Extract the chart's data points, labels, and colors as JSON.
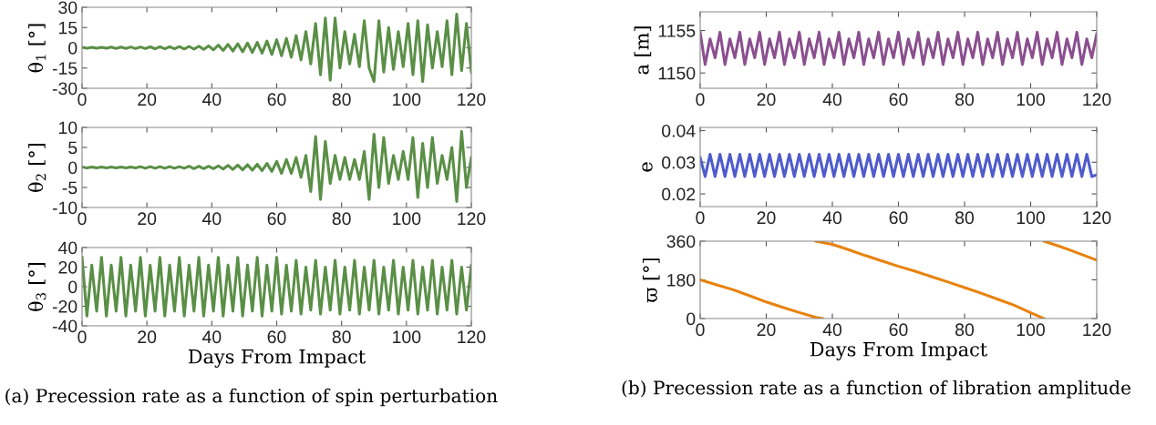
{
  "chart_data": [
    {
      "type": "line",
      "ylabel": "θ$_{1}$ [°]",
      "xlim": [
        0,
        120
      ],
      "xticks": [
        0,
        20,
        40,
        60,
        80,
        100,
        120
      ],
      "ylim": [
        -30,
        30
      ],
      "yticks": [
        -30,
        -15,
        0,
        15,
        30
      ],
      "series": [
        {
          "color": "#5a8f46",
          "x": [
            0,
            1.5,
            3,
            4.5,
            6,
            7.5,
            9,
            10.5,
            12,
            13.5,
            15,
            16.5,
            18,
            19.5,
            21,
            22.5,
            24,
            25.5,
            27,
            28.5,
            30,
            31.5,
            33,
            34.5,
            36,
            37.5,
            39,
            40.5,
            42,
            43.5,
            45,
            46.5,
            48,
            49.5,
            51,
            52.5,
            54,
            55.5,
            57,
            58.5,
            60,
            61.5,
            63,
            64.5,
            66,
            67.5,
            69,
            70.5,
            72,
            73.5,
            75,
            76.5,
            78,
            79.5,
            81,
            82.5,
            84,
            85.5,
            87,
            88.5,
            90,
            91.5,
            93,
            94.5,
            96,
            97.5,
            99,
            100.5,
            102,
            103.5,
            105,
            106.5,
            108,
            109.5,
            111,
            112.5,
            114,
            115.5,
            117,
            118.5,
            120
          ],
          "values": [
            0.3,
            -0.3,
            0.4,
            -0.4,
            0.4,
            -0.4,
            0.5,
            -0.5,
            0.5,
            -0.5,
            0.6,
            -0.6,
            0.6,
            -0.6,
            0.7,
            -0.7,
            0.8,
            -0.8,
            0.8,
            -0.8,
            0.9,
            -0.9,
            1,
            -1,
            1.2,
            -1.2,
            1.4,
            -1.5,
            2,
            -2,
            2.5,
            -2.5,
            3,
            -3,
            3.5,
            -3.5,
            4,
            -4,
            5,
            -5,
            6,
            -6,
            7,
            -7,
            9,
            -9,
            12,
            -12,
            18,
            -20,
            22,
            -24,
            22,
            -15,
            12,
            -12,
            10,
            -14,
            20,
            -15,
            -25,
            20,
            -18,
            15,
            -16,
            12,
            -14,
            18,
            -20,
            20,
            -25,
            17,
            -15,
            12,
            -14,
            20,
            -20,
            25,
            -17,
            18,
            -18
          ]
        }
      ]
    },
    {
      "type": "line",
      "ylabel": "θ$_{2}$ [°]",
      "xlim": [
        0,
        120
      ],
      "xticks": [
        0,
        20,
        40,
        60,
        80,
        100,
        120
      ],
      "ylim": [
        -10,
        10
      ],
      "yticks": [
        -10,
        -5,
        0,
        5,
        10
      ],
      "series": [
        {
          "color": "#5a8f46",
          "x": [
            0,
            1.5,
            3,
            4.5,
            6,
            7.5,
            9,
            10.5,
            12,
            13.5,
            15,
            16.5,
            18,
            19.5,
            21,
            22.5,
            24,
            25.5,
            27,
            28.5,
            30,
            31.5,
            33,
            34.5,
            36,
            37.5,
            39,
            40.5,
            42,
            43.5,
            45,
            46.5,
            48,
            49.5,
            51,
            52.5,
            54,
            55.5,
            57,
            58.5,
            60,
            61.5,
            63,
            64.5,
            66,
            67.5,
            69,
            70.5,
            72,
            73.5,
            75,
            76.5,
            78,
            79.5,
            81,
            82.5,
            84,
            85.5,
            87,
            88.5,
            90,
            91.5,
            93,
            94.5,
            96,
            97.5,
            99,
            100.5,
            102,
            103.5,
            105,
            106.5,
            108,
            109.5,
            111,
            112.5,
            114,
            115.5,
            117,
            118.5,
            120
          ],
          "values": [
            0.1,
            -0.1,
            0.1,
            -0.1,
            0.1,
            -0.1,
            0.1,
            -0.1,
            0.1,
            -0.1,
            0.1,
            -0.1,
            0.2,
            -0.2,
            0.2,
            -0.2,
            0.2,
            -0.2,
            0.2,
            -0.2,
            0.2,
            -0.2,
            0.3,
            -0.3,
            0.3,
            -0.3,
            0.3,
            -0.3,
            0.4,
            -0.4,
            0.5,
            -0.5,
            0.6,
            -0.6,
            0.7,
            -0.7,
            0.8,
            -0.8,
            1,
            -1,
            1.5,
            -1.5,
            2,
            -1.5,
            2.5,
            -2.5,
            3,
            -6,
            7.7,
            -8,
            6.5,
            -4,
            3,
            -3,
            2.5,
            -3,
            2,
            -3,
            4,
            -8,
            8.3,
            -5,
            7.5,
            -4,
            3,
            -3,
            4,
            -3,
            7.5,
            -7.5,
            6,
            -5,
            7.5,
            -4,
            3,
            -3,
            5,
            -8.5,
            9,
            -5,
            2.5
          ]
        }
      ]
    },
    {
      "type": "line",
      "ylabel": "θ$_{3}$ [°]",
      "xlabel": "Days From Impact",
      "xlim": [
        0,
        120
      ],
      "xticks": [
        0,
        20,
        40,
        60,
        80,
        100,
        120
      ],
      "ylim": [
        -40,
        40
      ],
      "yticks": [
        -40,
        -20,
        0,
        20,
        40
      ],
      "annotations": [
        "(a) Precession rate as a function of spin perturbation"
      ],
      "series": [
        {
          "color": "#5a8f46",
          "x": [
            0,
            1.5,
            3,
            4.5,
            6,
            7.5,
            9,
            10.5,
            12,
            13.5,
            15,
            16.5,
            18,
            19.5,
            21,
            22.5,
            24,
            25.5,
            27,
            28.5,
            30,
            31.5,
            33,
            34.5,
            36,
            37.5,
            39,
            40.5,
            42,
            43.5,
            45,
            46.5,
            48,
            49.5,
            51,
            52.5,
            54,
            55.5,
            57,
            58.5,
            60,
            61.5,
            63,
            64.5,
            66,
            67.5,
            69,
            70.5,
            72,
            73.5,
            75,
            76.5,
            78,
            79.5,
            81,
            82.5,
            84,
            85.5,
            87,
            88.5,
            90,
            91.5,
            93,
            94.5,
            96,
            97.5,
            99,
            100.5,
            102,
            103.5,
            105,
            106.5,
            108,
            109.5,
            111,
            112.5,
            114,
            115.5,
            117,
            118.5,
            120
          ],
          "values": [
            30,
            -30,
            22,
            -25,
            30,
            -30,
            22,
            -25,
            30,
            -30,
            22,
            -25,
            30,
            -30,
            22,
            -25,
            30,
            -30,
            22,
            -25,
            30,
            -30,
            22,
            -25,
            30,
            -30,
            22,
            -25,
            30,
            -30,
            22,
            -25,
            30,
            -30,
            22,
            -25,
            30,
            -30,
            22,
            -25,
            30,
            -28,
            22,
            -25,
            27,
            -28,
            20,
            -24,
            27,
            -28,
            20,
            -24,
            27,
            -28,
            20,
            -24,
            27,
            -28,
            20,
            -24,
            27,
            -28,
            20,
            -24,
            27,
            -28,
            20,
            -24,
            27,
            -28,
            20,
            -24,
            27,
            -28,
            20,
            -24,
            27,
            -28,
            20,
            -24,
            22
          ]
        }
      ]
    },
    {
      "type": "line",
      "ylabel": "a [m]",
      "xlim": [
        0,
        120
      ],
      "xticks": [
        0,
        20,
        40,
        60,
        80,
        100,
        120
      ],
      "ylim": [
        1148.2,
        1157.2
      ],
      "yticks": [
        1150,
        1155
      ],
      "series": [
        {
          "color": "#8b4f8f",
          "x": [
            0,
            1.5,
            3,
            4.5,
            6,
            7.5,
            9,
            10.5,
            12,
            13.5,
            15,
            16.5,
            18,
            19.5,
            21,
            22.5,
            24,
            25.5,
            27,
            28.5,
            30,
            31.5,
            33,
            34.5,
            36,
            37.5,
            39,
            40.5,
            42,
            43.5,
            45,
            46.5,
            48,
            49.5,
            51,
            52.5,
            54,
            55.5,
            57,
            58.5,
            60,
            61.5,
            63,
            64.5,
            66,
            67.5,
            69,
            70.5,
            72,
            73.5,
            75,
            76.5,
            78,
            79.5,
            81,
            82.5,
            84,
            85.5,
            87,
            88.5,
            90,
            91.5,
            93,
            94.5,
            96,
            97.5,
            99,
            100.5,
            102,
            103.5,
            105,
            106.5,
            108,
            109.5,
            111,
            112.5,
            114,
            115.5,
            117,
            118.5,
            120
          ],
          "values": [
            1154.8,
            1151,
            1154,
            1151.8,
            1154.8,
            1151,
            1154,
            1151.8,
            1154.8,
            1151,
            1154,
            1151.8,
            1154.8,
            1151,
            1154,
            1151.8,
            1154.8,
            1151,
            1154,
            1151.8,
            1154.8,
            1151,
            1154,
            1151.8,
            1154.8,
            1151,
            1154,
            1151.8,
            1154.8,
            1151,
            1154,
            1151.8,
            1154.8,
            1151,
            1154,
            1151.8,
            1154.8,
            1151,
            1154,
            1151.8,
            1154.8,
            1151,
            1154,
            1151.8,
            1154.8,
            1151,
            1154,
            1151.8,
            1154.8,
            1151,
            1154,
            1151.8,
            1154.8,
            1151,
            1154,
            1151.8,
            1154.8,
            1151,
            1154,
            1151.8,
            1154.8,
            1151,
            1154,
            1151.8,
            1154.8,
            1151,
            1154,
            1151.8,
            1154.8,
            1151,
            1154,
            1151.8,
            1154.8,
            1151,
            1154,
            1151.8,
            1154.8,
            1151,
            1154,
            1151.8,
            1154.6
          ]
        }
      ]
    },
    {
      "type": "line",
      "ylabel": "e",
      "xlim": [
        0,
        120
      ],
      "xticks": [
        0,
        20,
        40,
        60,
        80,
        100,
        120
      ],
      "ylim": [
        0.016,
        0.041
      ],
      "yticks": [
        0.02,
        0.03,
        0.04
      ],
      "series": [
        {
          "color": "#4f5bcc",
          "x": [
            0,
            1.5,
            3,
            4.5,
            6,
            7.5,
            9,
            10.5,
            12,
            13.5,
            15,
            16.5,
            18,
            19.5,
            21,
            22.5,
            24,
            25.5,
            27,
            28.5,
            30,
            31.5,
            33,
            34.5,
            36,
            37.5,
            39,
            40.5,
            42,
            43.5,
            45,
            46.5,
            48,
            49.5,
            51,
            52.5,
            54,
            55.5,
            57,
            58.5,
            60,
            61.5,
            63,
            64.5,
            66,
            67.5,
            69,
            70.5,
            72,
            73.5,
            75,
            76.5,
            78,
            79.5,
            81,
            82.5,
            84,
            85.5,
            87,
            88.5,
            90,
            91.5,
            93,
            94.5,
            96,
            97.5,
            99,
            100.5,
            102,
            103.5,
            105,
            106.5,
            108,
            109.5,
            111,
            112.5,
            114,
            115.5,
            117,
            118.5,
            120
          ],
          "values": [
            0.0315,
            0.0255,
            0.0325,
            0.0255,
            0.0325,
            0.0255,
            0.0325,
            0.0255,
            0.0325,
            0.0255,
            0.0325,
            0.0255,
            0.0325,
            0.0255,
            0.0325,
            0.0255,
            0.0325,
            0.0255,
            0.0325,
            0.0255,
            0.0325,
            0.0255,
            0.0325,
            0.0255,
            0.0325,
            0.0255,
            0.0325,
            0.0255,
            0.0325,
            0.0255,
            0.0325,
            0.0255,
            0.0325,
            0.0255,
            0.0325,
            0.0255,
            0.0325,
            0.0255,
            0.0325,
            0.0255,
            0.0325,
            0.0255,
            0.0325,
            0.0255,
            0.0325,
            0.0255,
            0.0325,
            0.0255,
            0.0325,
            0.0255,
            0.0325,
            0.0255,
            0.0325,
            0.0255,
            0.0325,
            0.0255,
            0.0325,
            0.0255,
            0.0325,
            0.0255,
            0.0325,
            0.0255,
            0.0325,
            0.0255,
            0.0325,
            0.0255,
            0.0325,
            0.0255,
            0.0325,
            0.0255,
            0.0325,
            0.0255,
            0.0325,
            0.0255,
            0.0325,
            0.0255,
            0.0325,
            0.0255,
            0.0325,
            0.0255,
            0.026
          ]
        }
      ]
    },
    {
      "type": "line",
      "ylabel": "ϖ [°]",
      "xlabel": "Days From Impact",
      "xlim": [
        0,
        120
      ],
      "xticks": [
        0,
        20,
        40,
        60,
        80,
        100,
        120
      ],
      "ylim": [
        0,
        360
      ],
      "yticks": [
        0,
        180,
        360
      ],
      "annotations": [
        "(b) Precession rate as a function of libration amplitude"
      ],
      "series": [
        {
          "color": "#e8820c",
          "x": [
            0,
            5,
            10,
            15,
            20,
            25,
            30,
            35,
            37
          ],
          "values": [
            180,
            157,
            134,
            106,
            77,
            52,
            28,
            5,
            0
          ]
        },
        {
          "color": "#e8820c",
          "x": [
            35,
            40,
            45,
            50,
            55,
            60,
            65,
            70,
            75,
            80,
            85,
            90,
            95,
            100,
            104
          ],
          "values": [
            360,
            345,
            320,
            293,
            268,
            243,
            220,
            195,
            170,
            144,
            118,
            90,
            62,
            27,
            0
          ]
        },
        {
          "color": "#e8820c",
          "x": [
            104,
            108,
            112,
            116,
            120
          ],
          "values": [
            360,
            340,
            318,
            295,
            272
          ]
        }
      ]
    }
  ]
}
